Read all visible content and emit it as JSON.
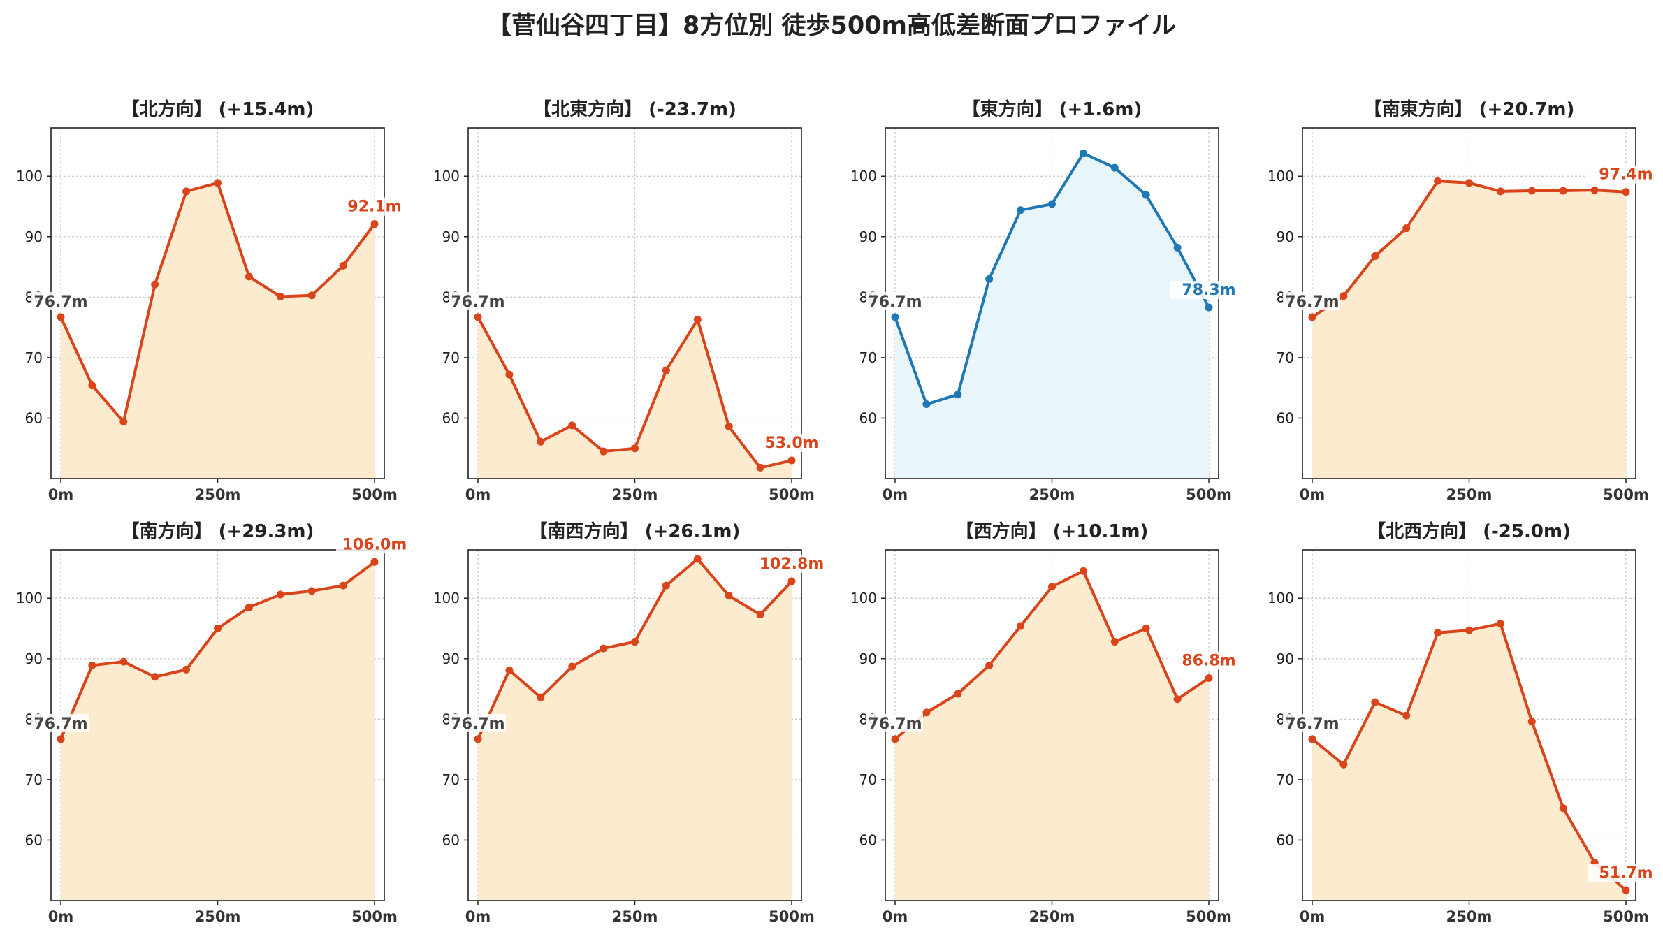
{
  "figure": {
    "title": "【菅仙谷四丁目】8方位別 徒歩500m高低差断面プロファイル",
    "colors": {
      "down": "#d9441a",
      "up": "#1f78b4",
      "fill_down": "#fdebd0",
      "fill_up": "#e8f6fc",
      "start_label": "#444444",
      "grid": "#c8c8c8"
    }
  },
  "chart_data": [
    {
      "type": "area",
      "title": "【北方向】 (+15.4m)",
      "start_label": "76.7m",
      "end_label": "92.1m",
      "trend": "down",
      "x": [
        0,
        50,
        100,
        150,
        200,
        250,
        300,
        350,
        400,
        450,
        500
      ],
      "values": [
        76.7,
        65.4,
        59.4,
        82.1,
        97.5,
        98.9,
        83.4,
        80.1,
        80.3,
        85.2,
        92.1
      ],
      "xticks": [
        "0m",
        "250m",
        "500m"
      ],
      "yticks": [
        "60",
        "70",
        "80",
        "90",
        "100"
      ],
      "ylim": [
        50,
        108
      ],
      "grid": true
    },
    {
      "type": "area",
      "title": "【北東方向】 (-23.7m)",
      "start_label": "76.7m",
      "end_label": "53.0m",
      "trend": "down",
      "x": [
        0,
        50,
        100,
        150,
        200,
        250,
        300,
        350,
        400,
        450,
        500
      ],
      "values": [
        76.7,
        67.2,
        56.1,
        58.8,
        54.5,
        55.0,
        67.9,
        76.3,
        58.6,
        51.8,
        53.0
      ],
      "xticks": [
        "0m",
        "250m",
        "500m"
      ],
      "yticks": [
        "60",
        "70",
        "80",
        "90",
        "100"
      ],
      "ylim": [
        50,
        108
      ],
      "grid": true
    },
    {
      "type": "area",
      "title": "【東方向】 (+1.6m)",
      "start_label": "76.7m",
      "end_label": "78.3m",
      "trend": "up",
      "x": [
        0,
        50,
        100,
        150,
        200,
        250,
        300,
        350,
        400,
        450,
        500
      ],
      "values": [
        76.7,
        62.3,
        63.9,
        83.0,
        94.4,
        95.4,
        103.8,
        101.4,
        96.9,
        88.2,
        78.3
      ],
      "xticks": [
        "0m",
        "250m",
        "500m"
      ],
      "yticks": [
        "60",
        "70",
        "80",
        "90",
        "100"
      ],
      "ylim": [
        50,
        108
      ],
      "grid": true
    },
    {
      "type": "area",
      "title": "【南東方向】 (+20.7m)",
      "start_label": "76.7m",
      "end_label": "97.4m",
      "trend": "down",
      "x": [
        0,
        50,
        100,
        150,
        200,
        250,
        300,
        350,
        400,
        450,
        500
      ],
      "values": [
        76.7,
        80.2,
        86.8,
        91.4,
        99.2,
        98.9,
        97.5,
        97.6,
        97.6,
        97.7,
        97.4
      ],
      "xticks": [
        "0m",
        "250m",
        "500m"
      ],
      "yticks": [
        "60",
        "70",
        "80",
        "90",
        "100"
      ],
      "ylim": [
        50,
        108
      ],
      "grid": true
    },
    {
      "type": "area",
      "title": "【南方向】 (+29.3m)",
      "start_label": "76.7m",
      "end_label": "106.0m",
      "trend": "down",
      "x": [
        0,
        50,
        100,
        150,
        200,
        250,
        300,
        350,
        400,
        450,
        500
      ],
      "values": [
        76.7,
        88.9,
        89.5,
        87.0,
        88.2,
        95.0,
        98.5,
        100.6,
        101.2,
        102.1,
        106.0
      ],
      "xticks": [
        "0m",
        "250m",
        "500m"
      ],
      "yticks": [
        "60",
        "70",
        "80",
        "90",
        "100"
      ],
      "ylim": [
        50,
        108
      ],
      "grid": true
    },
    {
      "type": "area",
      "title": "【南西方向】 (+26.1m)",
      "start_label": "76.7m",
      "end_label": "102.8m",
      "trend": "down",
      "x": [
        0,
        50,
        100,
        150,
        200,
        250,
        300,
        350,
        400,
        450,
        500
      ],
      "values": [
        76.7,
        88.1,
        83.6,
        88.7,
        91.7,
        92.8,
        102.1,
        106.5,
        100.4,
        97.3,
        102.8
      ],
      "xticks": [
        "0m",
        "250m",
        "500m"
      ],
      "yticks": [
        "60",
        "70",
        "80",
        "90",
        "100"
      ],
      "ylim": [
        50,
        108
      ],
      "grid": true
    },
    {
      "type": "area",
      "title": "【西方向】 (+10.1m)",
      "start_label": "76.7m",
      "end_label": "86.8m",
      "trend": "down",
      "x": [
        0,
        50,
        100,
        150,
        200,
        250,
        300,
        350,
        400,
        450,
        500
      ],
      "values": [
        76.7,
        81.1,
        84.2,
        88.9,
        95.4,
        101.9,
        104.5,
        92.8,
        95.0,
        83.3,
        86.8
      ],
      "xticks": [
        "0m",
        "250m",
        "500m"
      ],
      "yticks": [
        "60",
        "70",
        "80",
        "90",
        "100"
      ],
      "ylim": [
        50,
        108
      ],
      "grid": true
    },
    {
      "type": "area",
      "title": "【北西方向】 (-25.0m)",
      "start_label": "76.7m",
      "end_label": "51.7m",
      "trend": "down",
      "x": [
        0,
        50,
        100,
        150,
        200,
        250,
        300,
        350,
        400,
        450,
        500
      ],
      "values": [
        76.7,
        72.5,
        82.8,
        80.6,
        94.3,
        94.7,
        95.8,
        79.6,
        65.3,
        56.3,
        51.7
      ],
      "xticks": [
        "0m",
        "250m",
        "500m"
      ],
      "yticks": [
        "60",
        "70",
        "80",
        "90",
        "100"
      ],
      "ylim": [
        50,
        108
      ],
      "grid": true
    }
  ]
}
